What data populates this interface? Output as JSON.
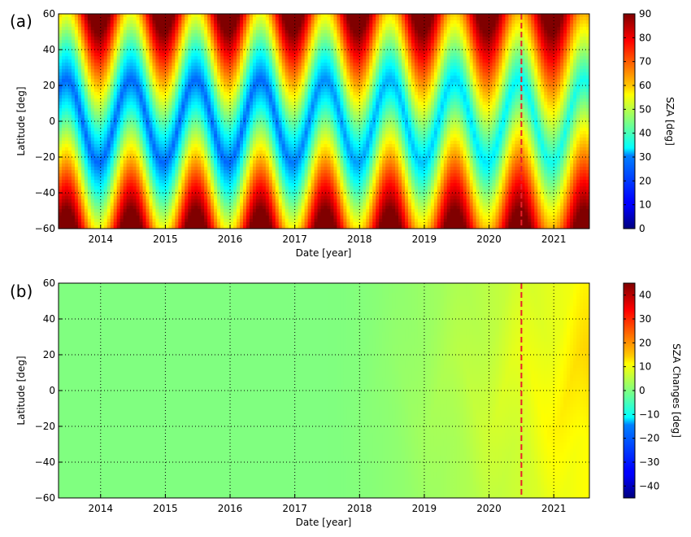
{
  "chart_data": [
    {
      "type": "heatmap",
      "panel_label": "(a)",
      "xlabel": "Date [year]",
      "ylabel": "Latitude [deg]",
      "x_tick_labels": [
        "2014",
        "2015",
        "2016",
        "2017",
        "2018",
        "2019",
        "2020",
        "2021"
      ],
      "y_tick_labels": [
        "60",
        "40",
        "20",
        "0",
        "−20",
        "−40",
        "−60"
      ],
      "xlim": [
        2013.35,
        2021.55
      ],
      "ylim": [
        -60,
        60
      ],
      "grid": true,
      "colorbar": {
        "title": "SZA [deg]",
        "range": [
          0,
          90
        ],
        "tick_labels": [
          "90",
          "80",
          "70",
          "60",
          "50",
          "40",
          "30",
          "20",
          "10",
          "0"
        ],
        "colormap": "jet"
      },
      "field": {
        "description_values": "Solar zenith angle oscillating with latitude and season; minimum ~20 deg in the tropics early in the record, rising to ~35 deg after drift; maximum ~90 deg at high latitude in local winter",
        "early_minimum": 20,
        "late_minimum": 35,
        "maximum": 90
      },
      "marker_line": {
        "x": 2020.5,
        "color": "#e8202a",
        "style": "dashed"
      }
    },
    {
      "type": "heatmap",
      "panel_label": "(b)",
      "xlabel": "Date [year]",
      "ylabel": "Latitude [deg]",
      "x_tick_labels": [
        "2014",
        "2015",
        "2016",
        "2017",
        "2018",
        "2019",
        "2020",
        "2021"
      ],
      "y_tick_labels": [
        "60",
        "40",
        "20",
        "0",
        "−20",
        "−40",
        "−60"
      ],
      "xlim": [
        2013.35,
        2021.55
      ],
      "ylim": [
        -60,
        60
      ],
      "grid": true,
      "colorbar": {
        "title": "SZA Changes [deg]",
        "range": [
          -45,
          45
        ],
        "tick_labels": [
          "40",
          "30",
          "20",
          "10",
          "0",
          "−10",
          "−20",
          "−30",
          "−40"
        ],
        "colormap": "jet"
      },
      "field": {
        "near_zero_until": 2017.5,
        "value_2019_5": 10,
        "value_2021_peak": 32
      },
      "marker_line": {
        "x": 2020.5,
        "color": "#e8202a",
        "style": "dashed"
      }
    }
  ]
}
